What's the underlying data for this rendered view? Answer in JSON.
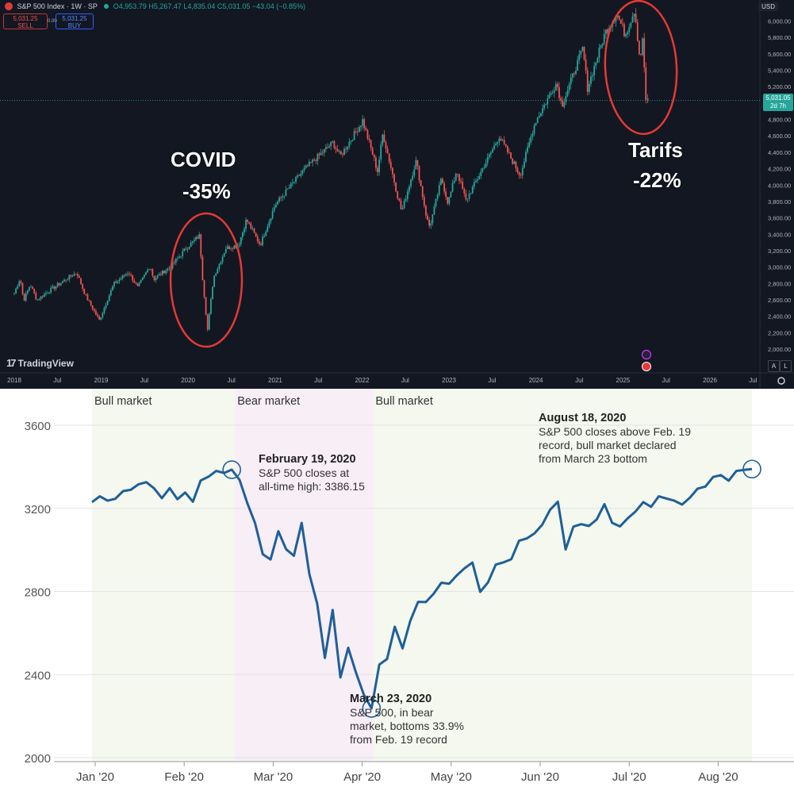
{
  "top_chart": {
    "header": {
      "title": "S&P 500 Index · 1W · SP",
      "ohlc": "O4,953.79 H5,267.47 L4,835.04 C5,031.05 −43.04 (−0.85%)"
    },
    "sell": {
      "price": "5,031.25",
      "label": "SELL"
    },
    "buy": {
      "price": "5,031.25",
      "label": "BUY"
    },
    "spread": "0.00",
    "currency": "USD",
    "brand": "TradingView",
    "price_tag": {
      "price": "5,031.05",
      "countdown": "2d 7h"
    },
    "scale_buttons": [
      "A",
      "L"
    ],
    "annotations": {
      "covid_title": "COVID",
      "covid_pct": "-35%",
      "tariffs_title": "Tarifs",
      "tariffs_pct": "-22%"
    }
  },
  "colors": {
    "dark_bg": "#131722",
    "up": "#26a69a",
    "down": "#ef5350",
    "ellipse": "#e53935",
    "line": "#1f5f99",
    "bull_band": "#f4f8ee",
    "bear_band": "#f7eef6"
  },
  "chart_data": [
    {
      "type": "candlestick",
      "title": "S&P 500 Index · 1W · SP",
      "x_ticks": [
        "2018",
        "Jul",
        "2019",
        "Jul",
        "2020",
        "Jul",
        "2021",
        "Jul",
        "2022",
        "Jul",
        "2023",
        "Jul",
        "2024",
        "Jul",
        "2025",
        "Jul",
        "2026",
        "Jul"
      ],
      "y_ticks": [
        "6,000.00",
        "5,800.00",
        "5,600.00",
        "5,400.00",
        "5,200.00",
        "4,800.00",
        "4,600.00",
        "4,400.00",
        "4,200.00",
        "4,000.00",
        "3,800.00",
        "3,600.00",
        "3,400.00",
        "3,200.00",
        "3,000.00",
        "2,800.00",
        "2,600.00",
        "2,400.00",
        "2,200.00",
        "2,000.00"
      ],
      "ylim": [
        1900,
        6200
      ],
      "last_price": 5031.05,
      "anchors": [
        [
          "2018-01-01",
          2680
        ],
        [
          "2018-01-26",
          2870
        ],
        [
          "2018-02-09",
          2590
        ],
        [
          "2018-03-09",
          2790
        ],
        [
          "2018-04-06",
          2600
        ],
        [
          "2018-06-01",
          2720
        ],
        [
          "2018-08-31",
          2900
        ],
        [
          "2018-09-21",
          2930
        ],
        [
          "2018-10-26",
          2660
        ],
        [
          "2018-12-24",
          2350
        ],
        [
          "2019-02-22",
          2790
        ],
        [
          "2019-04-26",
          2940
        ],
        [
          "2019-06-03",
          2750
        ],
        [
          "2019-07-26",
          3020
        ],
        [
          "2019-08-09",
          2850
        ],
        [
          "2019-10-25",
          3020
        ],
        [
          "2019-12-27",
          3240
        ],
        [
          "2020-02-19",
          3386
        ],
        [
          "2020-02-28",
          2954
        ],
        [
          "2020-03-23",
          2237
        ],
        [
          "2020-04-17",
          2875
        ],
        [
          "2020-06-08",
          3230
        ],
        [
          "2020-07-31",
          3270
        ],
        [
          "2020-09-02",
          3580
        ],
        [
          "2020-10-30",
          3270
        ],
        [
          "2020-12-31",
          3756
        ],
        [
          "2021-04-30",
          4180
        ],
        [
          "2021-08-31",
          4520
        ],
        [
          "2021-10-01",
          4350
        ],
        [
          "2021-12-31",
          4766
        ],
        [
          "2022-01-03",
          4790
        ],
        [
          "2022-03-07",
          4170
        ],
        [
          "2022-03-29",
          4630
        ],
        [
          "2022-06-16",
          3670
        ],
        [
          "2022-08-16",
          4300
        ],
        [
          "2022-09-30",
          3585
        ],
        [
          "2022-10-12",
          3490
        ],
        [
          "2022-11-30",
          4080
        ],
        [
          "2022-12-28",
          3780
        ],
        [
          "2023-02-02",
          4180
        ],
        [
          "2023-03-13",
          3810
        ],
        [
          "2023-07-31",
          4590
        ],
        [
          "2023-10-27",
          4120
        ],
        [
          "2023-12-29",
          4770
        ],
        [
          "2024-03-28",
          5250
        ],
        [
          "2024-04-19",
          4967
        ],
        [
          "2024-07-16",
          5670
        ],
        [
          "2024-08-05",
          5186
        ],
        [
          "2024-10-18",
          5860
        ],
        [
          "2024-12-06",
          6090
        ],
        [
          "2025-01-10",
          5830
        ],
        [
          "2025-02-19",
          6144
        ],
        [
          "2025-03-13",
          5520
        ],
        [
          "2025-03-25",
          5780
        ],
        [
          "2025-04-08",
          4982
        ],
        [
          "2025-04-16",
          5031
        ]
      ]
    },
    {
      "type": "line",
      "series": [
        {
          "name": "",
          "values": [
            3230,
            3258,
            3237,
            3246,
            3283,
            3289,
            3316,
            3326,
            3296,
            3249,
            3297,
            3244,
            3276,
            3232,
            3334,
            3352,
            3380,
            3370,
            3386,
            3337,
            3225,
            3128,
            2979,
            2954,
            3090,
            3003,
            2972,
            3130,
            2882,
            2741,
            2480,
            2711,
            2386,
            2529,
            2409,
            2304,
            2237,
            2448,
            2475,
            2630,
            2526,
            2659,
            2750,
            2749,
            2789,
            2842,
            2837,
            2878,
            2912,
            2939,
            2798,
            2843,
            2929,
            2940,
            2955,
            3044,
            3055,
            3080,
            3122,
            3193,
            3232,
            3002,
            3112,
            3124,
            3115,
            3146,
            3220,
            3130,
            3113,
            3152,
            3185,
            3230,
            3207,
            3258,
            3247,
            3237,
            3218,
            3251,
            3295,
            3305,
            3351,
            3360,
            3333,
            3380,
            3385,
            3389
          ]
        }
      ],
      "x_ticks": [
        "Jan '20",
        "Feb '20",
        "Mar '20",
        "Apr '20",
        "May '20",
        "Jun '20",
        "Jul '20",
        "Aug '20"
      ],
      "y_ticks": [
        "2000",
        "2400",
        "2800",
        "3200",
        "3600"
      ],
      "ylim": [
        2000,
        3700
      ],
      "bands": [
        {
          "label": "Bull market"
        },
        {
          "label": "Bear market"
        },
        {
          "label": "Bull market"
        }
      ],
      "annotations": [
        {
          "title": "February 19, 2020",
          "lines": [
            "S&P 500 closes at",
            "all-time high: 3386.15"
          ]
        },
        {
          "title": "March 23, 2020",
          "lines": [
            "S&P 500, in bear",
            "market, bottoms 33.9%",
            "from Feb. 19 record"
          ]
        },
        {
          "title": "August 18, 2020",
          "lines": [
            "S&P 500 closes above Feb. 19",
            "record, bull market declared",
            "from March 23 bottom"
          ]
        }
      ]
    }
  ]
}
